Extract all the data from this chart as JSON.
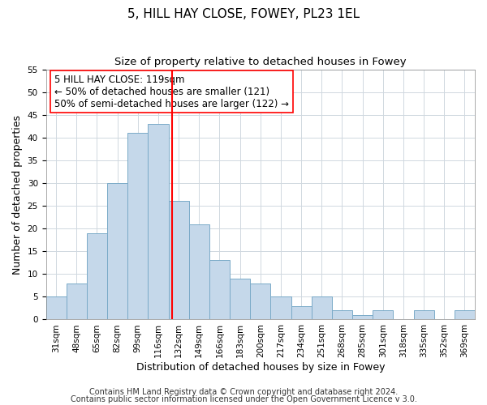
{
  "title": "5, HILL HAY CLOSE, FOWEY, PL23 1EL",
  "subtitle": "Size of property relative to detached houses in Fowey",
  "xlabel": "Distribution of detached houses by size in Fowey",
  "ylabel": "Number of detached properties",
  "bin_labels": [
    "31sqm",
    "48sqm",
    "65sqm",
    "82sqm",
    "99sqm",
    "116sqm",
    "132sqm",
    "149sqm",
    "166sqm",
    "183sqm",
    "200sqm",
    "217sqm",
    "234sqm",
    "251sqm",
    "268sqm",
    "285sqm",
    "301sqm",
    "318sqm",
    "335sqm",
    "352sqm",
    "369sqm"
  ],
  "bin_values": [
    5,
    8,
    19,
    30,
    41,
    43,
    26,
    21,
    13,
    9,
    8,
    5,
    3,
    5,
    2,
    1,
    2,
    0,
    2,
    0,
    2
  ],
  "bar_color": "#c5d8ea",
  "bar_edge_color": "#7aaac8",
  "vline_bin_index": 5.19,
  "ylim": [
    0,
    55
  ],
  "yticks": [
    0,
    5,
    10,
    15,
    20,
    25,
    30,
    35,
    40,
    45,
    50,
    55
  ],
  "annotation_text": "5 HILL HAY CLOSE: 119sqm\n← 50% of detached houses are smaller (121)\n50% of semi-detached houses are larger (122) →",
  "footnote1": "Contains HM Land Registry data © Crown copyright and database right 2024.",
  "footnote2": "Contains public sector information licensed under the Open Government Licence v 3.0.",
  "title_fontsize": 11,
  "subtitle_fontsize": 9.5,
  "axis_label_fontsize": 9,
  "tick_fontsize": 7.5,
  "annotation_fontsize": 8.5,
  "footnote_fontsize": 7
}
